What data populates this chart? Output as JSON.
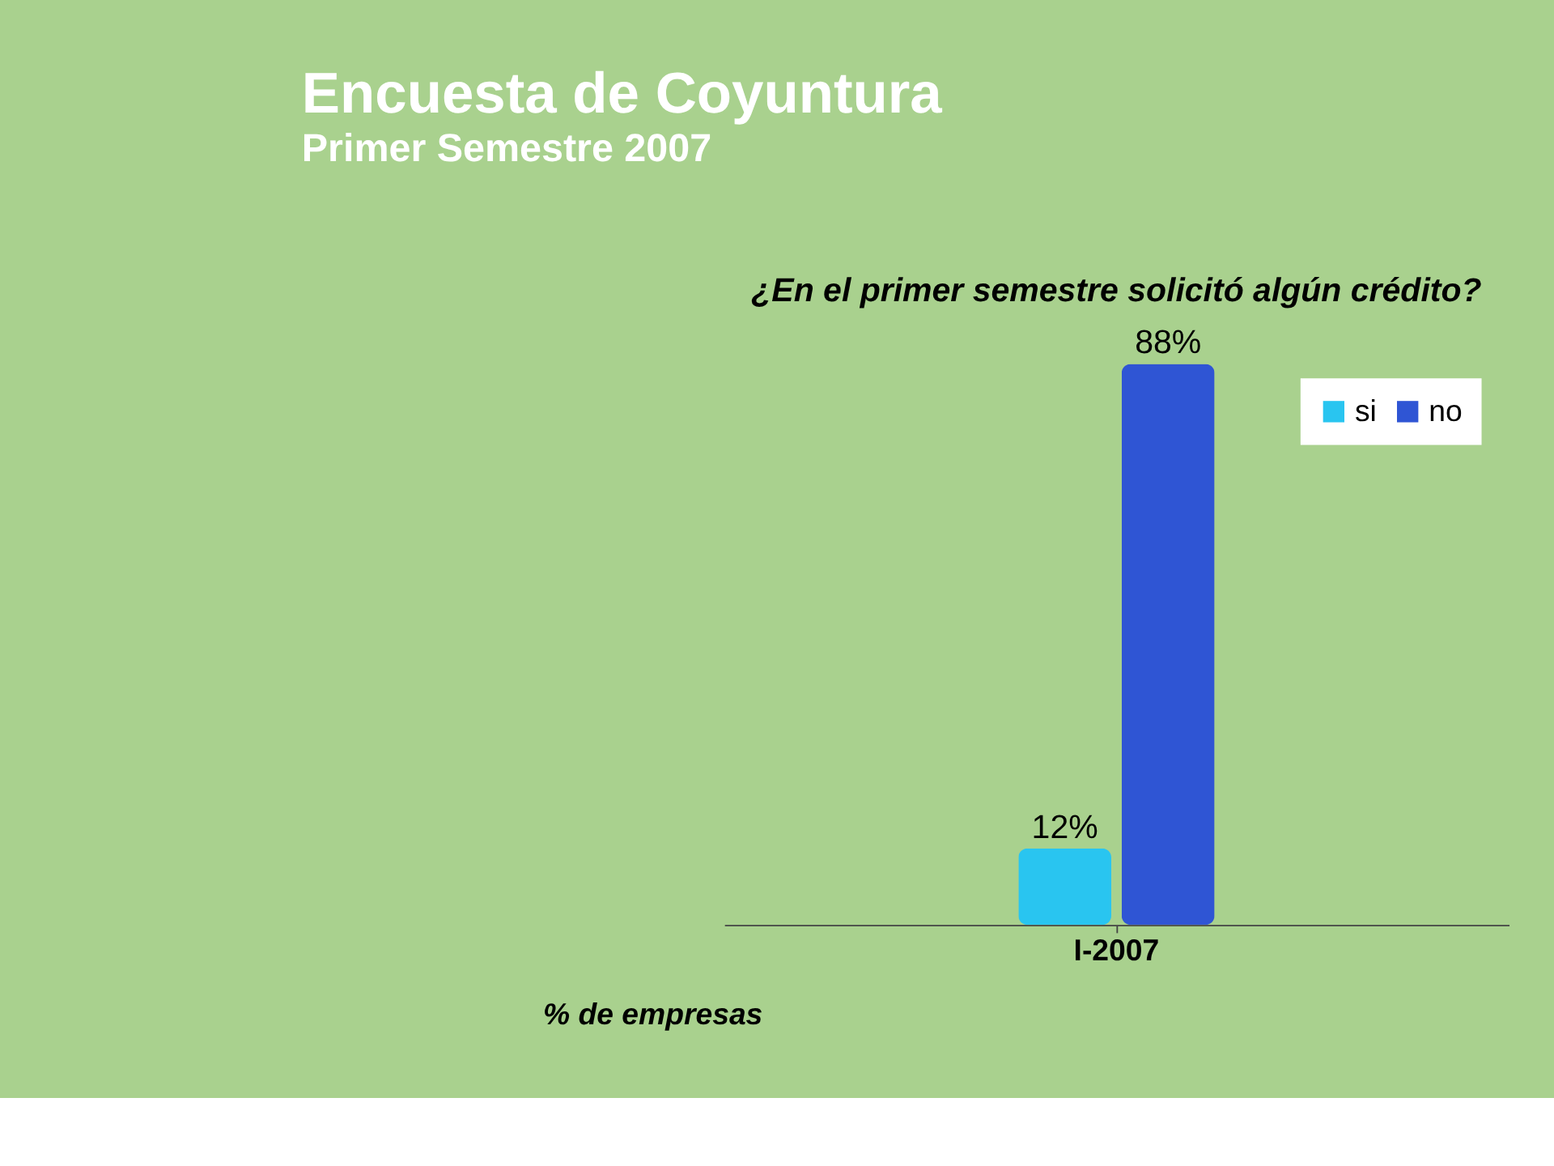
{
  "chart_data": {
    "type": "bar",
    "title": "Encuesta de Coyuntura",
    "subtitle": "Primer Semestre 2007",
    "annotations": [
      "¿En el primer semestre solicitó algún crédito?",
      "% de empresas"
    ],
    "categories": [
      "I-2007"
    ],
    "series": [
      {
        "name": "si",
        "color": "#29c5f0",
        "values": [
          12
        ],
        "value_labels": [
          "12%"
        ]
      },
      {
        "name": "no",
        "color": "#2f55d4",
        "values": [
          88
        ],
        "value_labels": [
          "88%"
        ]
      }
    ],
    "legend": "top right"
  }
}
